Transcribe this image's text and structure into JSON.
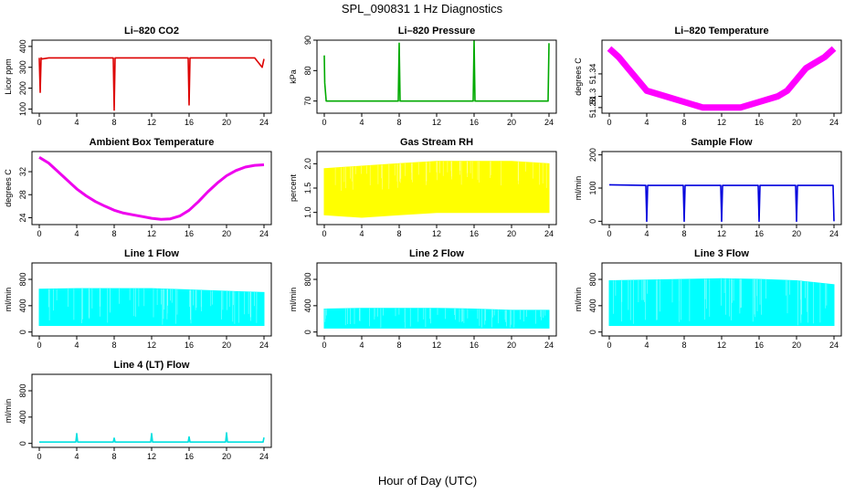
{
  "figure": {
    "title": "SPL_090831  1 Hz Diagnostics",
    "xlabel": "Hour of Day (UTC)"
  },
  "chart_data": [
    {
      "type": "line",
      "title": "Li–820 CO2",
      "ylabel": "Licor ppm",
      "color": "#dd0000",
      "xlim": [
        0,
        24
      ],
      "ylim": [
        80,
        430
      ],
      "yticks": [
        "100",
        "200",
        "300",
        "400"
      ],
      "series": [
        {
          "x": [
            0,
            0.1,
            0.2,
            0.3,
            1,
            2,
            3,
            4,
            5,
            6,
            7,
            7.9,
            8,
            8.1,
            9,
            10,
            11,
            12,
            13,
            14,
            15,
            15.9,
            16,
            16.1,
            17,
            18,
            19,
            20,
            21,
            22,
            23,
            23.8,
            24
          ],
          "y": [
            345,
            180,
            345,
            340,
            345,
            345,
            345,
            345,
            345,
            345,
            345,
            345,
            95,
            345,
            345,
            345,
            345,
            345,
            345,
            345,
            345,
            345,
            120,
            345,
            345,
            345,
            345,
            345,
            345,
            345,
            345,
            300,
            340
          ]
        }
      ]
    },
    {
      "type": "line",
      "title": "Li–820 Pressure",
      "ylabel": "kPa",
      "color": "#00aa00",
      "xlim": [
        0,
        24
      ],
      "ylim": [
        66,
        90
      ],
      "yticks": [
        "70",
        "80",
        "90"
      ],
      "series": [
        {
          "x": [
            0,
            0.05,
            0.2,
            1,
            4,
            7.9,
            8,
            8.1,
            12,
            15.9,
            16,
            16.1,
            20,
            23.9,
            24
          ],
          "y": [
            85,
            76,
            70,
            70,
            70,
            70,
            89,
            70,
            70,
            70,
            90,
            70,
            70,
            70,
            89
          ]
        }
      ]
    },
    {
      "type": "line",
      "title": "Li–820 Temperature",
      "ylabel": "degrees C",
      "color": "#ff00ff",
      "xlim": [
        0,
        24
      ],
      "ylim": [
        51.27,
        51.4
      ],
      "yticks": [
        "51.28",
        "51.3",
        "51.34"
      ],
      "series": [
        {
          "x": [
            0,
            1,
            2,
            3,
            4,
            6,
            8,
            10,
            12,
            14,
            16,
            18,
            19,
            20,
            21,
            22,
            23,
            24
          ],
          "y": [
            51.385,
            51.37,
            51.35,
            51.33,
            51.31,
            51.3,
            51.29,
            51.28,
            51.28,
            51.28,
            51.29,
            51.3,
            51.31,
            51.33,
            51.35,
            51.36,
            51.37,
            51.385
          ]
        }
      ]
    },
    {
      "type": "line",
      "title": "Ambient Box Temperature",
      "ylabel": "degrees C",
      "color": "#ee00ee",
      "xlim": [
        0,
        24
      ],
      "ylim": [
        22.8,
        35.5
      ],
      "yticks": [
        "24",
        "28",
        "32"
      ],
      "series": [
        {
          "x": [
            0,
            1,
            2,
            3,
            4,
            5,
            6,
            7,
            8,
            9,
            10,
            11,
            12,
            13,
            14,
            15,
            16,
            17,
            18,
            19,
            20,
            21,
            22,
            23,
            24
          ],
          "y": [
            34.5,
            33.5,
            32,
            30.5,
            29,
            27.8,
            26.8,
            26,
            25.3,
            24.8,
            24.5,
            24.2,
            23.9,
            23.7,
            23.8,
            24.3,
            25.3,
            26.8,
            28.5,
            30,
            31.3,
            32.2,
            32.8,
            33.1,
            33.2
          ]
        }
      ]
    },
    {
      "type": "area",
      "title": "Gas Stream RH",
      "ylabel": "percent",
      "color": "#ffff00",
      "xlim": [
        0,
        24
      ],
      "ylim": [
        0.75,
        2.25
      ],
      "yticks": [
        "1.0",
        "1.5",
        "2.0"
      ],
      "series": [
        {
          "x": [
            0,
            4,
            8,
            12,
            16,
            20,
            24
          ],
          "y_low": [
            0.95,
            0.9,
            0.95,
            1.0,
            1.0,
            1.0,
            1.0
          ],
          "y_high": [
            1.9,
            1.95,
            2.0,
            2.05,
            2.05,
            2.05,
            2.0
          ]
        }
      ]
    },
    {
      "type": "line",
      "title": "Sample Flow",
      "ylabel": "ml/min",
      "color": "#0000dd",
      "xlim": [
        0,
        24
      ],
      "ylim": [
        -10,
        210
      ],
      "yticks": [
        "0",
        "100",
        "200"
      ],
      "series": [
        {
          "x": [
            0,
            3.9,
            4,
            4.1,
            7.9,
            8,
            8.1,
            11.9,
            12,
            12.1,
            15.9,
            16,
            16.1,
            19.9,
            20,
            20.1,
            23.9,
            24
          ],
          "y": [
            110,
            108,
            0,
            108,
            108,
            0,
            108,
            108,
            0,
            108,
            108,
            0,
            108,
            108,
            0,
            108,
            108,
            0
          ]
        }
      ]
    },
    {
      "type": "area",
      "title": "Line 1 Flow",
      "ylabel": "ml/min",
      "color": "#00ffff",
      "xlim": [
        0,
        24
      ],
      "ylim": [
        -60,
        1050
      ],
      "yticks": [
        "0",
        "400",
        "800"
      ],
      "series": [
        {
          "x": [
            0,
            4,
            8,
            12,
            16,
            20,
            24
          ],
          "y_low": [
            100,
            100,
            100,
            100,
            100,
            100,
            100
          ],
          "y_high": [
            650,
            660,
            660,
            660,
            640,
            620,
            600
          ]
        }
      ]
    },
    {
      "type": "area",
      "title": "Line 2 Flow",
      "ylabel": "ml/min",
      "color": "#00ffff",
      "xlim": [
        0,
        24
      ],
      "ylim": [
        -60,
        1050
      ],
      "yticks": [
        "0",
        "400",
        "800"
      ],
      "series": [
        {
          "x": [
            0,
            4,
            8,
            12,
            16,
            20,
            24
          ],
          "y_low": [
            60,
            60,
            60,
            60,
            60,
            60,
            60
          ],
          "y_high": [
            350,
            360,
            360,
            360,
            350,
            330,
            330
          ]
        }
      ]
    },
    {
      "type": "area",
      "title": "Line 3 Flow",
      "ylabel": "ml/min",
      "color": "#00ffff",
      "xlim": [
        0,
        24
      ],
      "ylim": [
        -60,
        1050
      ],
      "yticks": [
        "0",
        "400",
        "800"
      ],
      "series": [
        {
          "x": [
            0,
            4,
            8,
            12,
            16,
            20,
            24
          ],
          "y_low": [
            100,
            100,
            100,
            100,
            100,
            100,
            100
          ],
          "y_high": [
            780,
            790,
            800,
            810,
            800,
            780,
            720
          ]
        }
      ]
    },
    {
      "type": "line",
      "title": "Line 4 (LT) Flow",
      "ylabel": "ml/min",
      "color": "#00e0e0",
      "xlim": [
        0,
        24
      ],
      "ylim": [
        -60,
        1050
      ],
      "yticks": [
        "0",
        "400",
        "800"
      ],
      "series": [
        {
          "x": [
            0,
            3.9,
            4,
            4.1,
            7.9,
            8,
            8.1,
            11.9,
            12,
            12.1,
            15.9,
            16,
            16.1,
            19.9,
            20,
            20.1,
            23.9,
            24
          ],
          "y": [
            20,
            20,
            150,
            20,
            20,
            80,
            20,
            20,
            150,
            20,
            20,
            100,
            20,
            20,
            160,
            20,
            20,
            90
          ]
        }
      ]
    }
  ]
}
